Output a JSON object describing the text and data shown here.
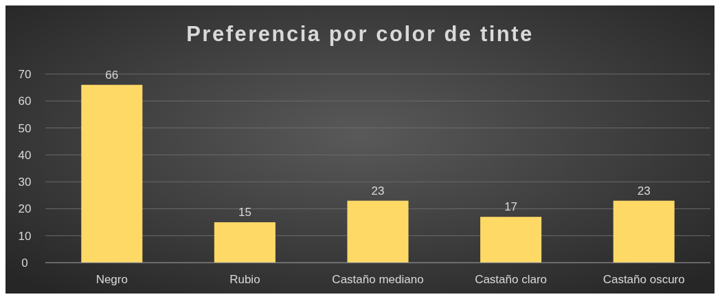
{
  "chart_data": {
    "type": "bar",
    "title": "Preferencia por color de tinte",
    "categories": [
      "Negro",
      "Rubio",
      "Castaño mediano",
      "Castaño claro",
      "Castaño oscuro"
    ],
    "values": [
      66,
      15,
      23,
      17,
      23
    ],
    "color": "#ffd966",
    "ylim": [
      0,
      70
    ],
    "yticks": [
      0,
      10,
      20,
      30,
      40,
      50,
      60,
      70
    ],
    "grid": "y",
    "data_labels": true
  }
}
